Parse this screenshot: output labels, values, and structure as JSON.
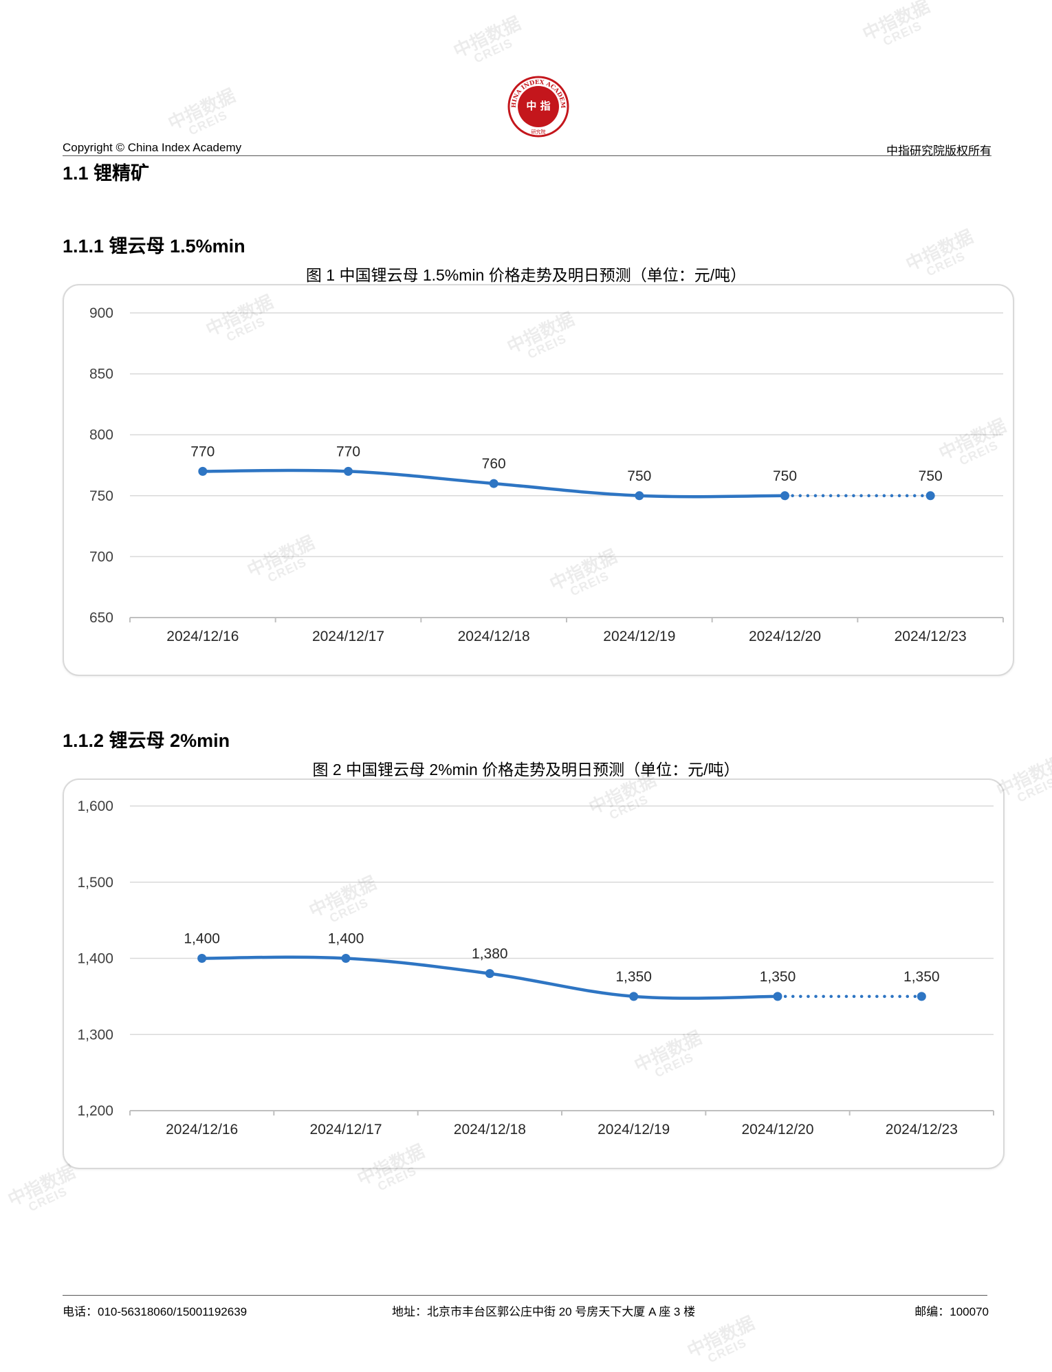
{
  "header": {
    "copyright": "Copyright © China Index Academy",
    "rights": "中指研究院版权所有",
    "logo": {
      "ring_text": "CHINA INDEX ACADEMY",
      "inner": "中 指",
      "bottom": "研究院",
      "color": "#c4161c"
    }
  },
  "section_title": "1.1 锂精矿",
  "charts": [
    {
      "subsection_title": "1.1.1 锂云母 1.5%min",
      "figure_title": "图 1 中国锂云母 1.5%min 价格走势及明日预测（单位：元/吨）",
      "chart_data": {
        "type": "line",
        "categories": [
          "2024/12/16",
          "2024/12/17",
          "2024/12/18",
          "2024/12/19",
          "2024/12/20",
          "2024/12/23"
        ],
        "values": [
          770,
          770,
          760,
          750,
          750,
          750
        ],
        "data_labels": [
          "770",
          "770",
          "760",
          "750",
          "750",
          "750"
        ],
        "forecast_segment": "dotted from 2024/12/20 to 2024/12/23",
        "ylim": [
          650,
          900
        ],
        "yticks": [
          650,
          700,
          750,
          800,
          850,
          900
        ],
        "ytick_labels": [
          "650",
          "700",
          "750",
          "800",
          "850",
          "900"
        ],
        "grid": true,
        "color": "#2e75c3"
      }
    },
    {
      "subsection_title": "1.1.2 锂云母 2%min",
      "figure_title": "图 2 中国锂云母 2%min 价格走势及明日预测（单位：元/吨）",
      "chart_data": {
        "type": "line",
        "categories": [
          "2024/12/16",
          "2024/12/17",
          "2024/12/18",
          "2024/12/19",
          "2024/12/20",
          "2024/12/23"
        ],
        "values": [
          1400,
          1400,
          1380,
          1350,
          1350,
          1350
        ],
        "data_labels": [
          "1,400",
          "1,400",
          "1,380",
          "1,350",
          "1,350",
          "1,350"
        ],
        "forecast_segment": "dotted from 2024/12/20 to 2024/12/23",
        "ylim": [
          1200,
          1600
        ],
        "yticks": [
          1200,
          1300,
          1400,
          1500,
          1600
        ],
        "ytick_labels": [
          "1,200",
          "1,300",
          "1,400",
          "1,500",
          "1,600"
        ],
        "grid": true,
        "color": "#2e75c3"
      }
    }
  ],
  "footer": {
    "phone": "电话：010-56318060/15001192639",
    "address": "地址：北京市丰台区郭公庄中街 20 号房天下大厦 A 座 3 楼",
    "postcode": "邮编：100070"
  },
  "watermark": {
    "cn": "中指数据",
    "en": "CREIS"
  }
}
